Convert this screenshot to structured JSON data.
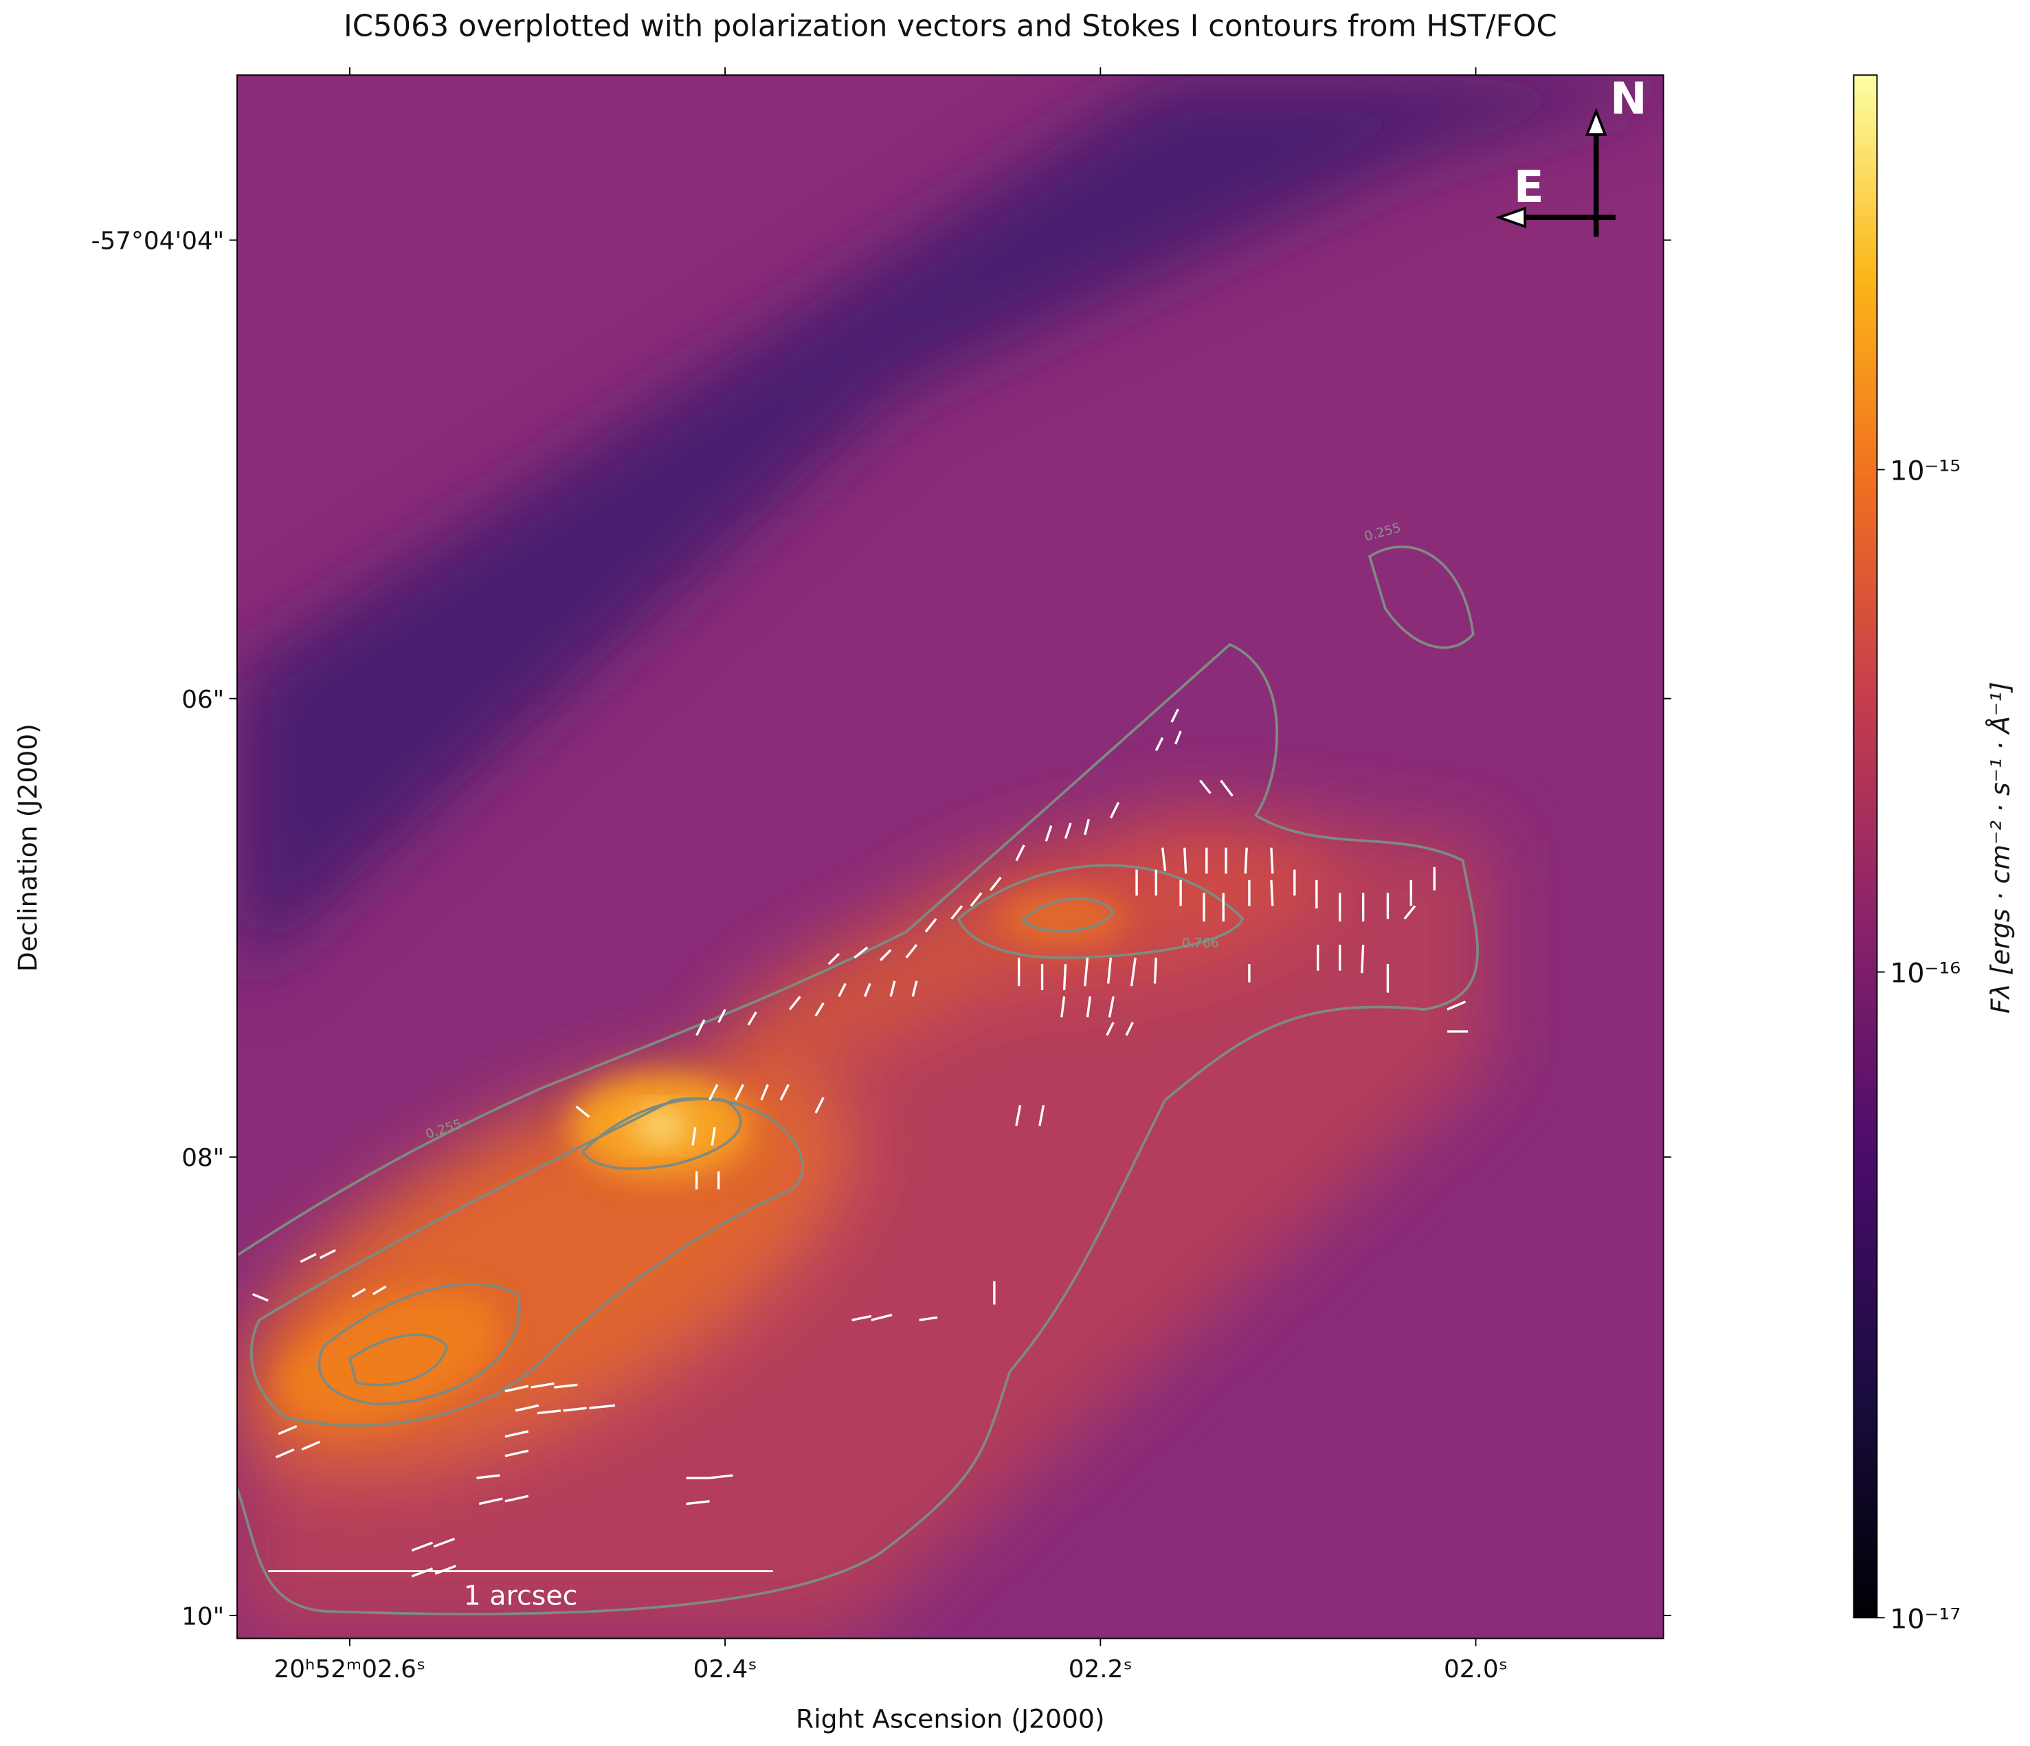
{
  "chart_data": {
    "type": "image",
    "title": "IC5063 overplotted with polarization vectors and Stokes I contours from HST/FOC",
    "xlabel": "Right Ascension (J2000)",
    "ylabel": "Declination (J2000)",
    "xlim": [
      2.66,
      1.9
    ],
    "xticks": [
      {
        "value": 2.6,
        "label": "20ʰ52ᵐ02.6ˢ"
      },
      {
        "value": 2.4,
        "label": "02.4ˢ"
      },
      {
        "value": 2.2,
        "label": "02.2ˢ"
      },
      {
        "value": 2.0,
        "label": "02.0ˢ"
      }
    ],
    "ylim": [
      10.1,
      3.28
    ],
    "yticks": [
      {
        "value": 4,
        "label": "-57°04'04\""
      },
      {
        "value": 6,
        "label": "06\""
      },
      {
        "value": 8,
        "label": "08\""
      },
      {
        "value": 10,
        "label": "10\""
      }
    ],
    "compass": {
      "north": "N",
      "east": "E"
    },
    "scale_bar": "1 arcsec",
    "contour_labels": [
      "0.255",
      "0.255",
      "0.766"
    ],
    "colorbar": {
      "label": "Fλ [ergs · cm⁻² · s⁻¹ · Å⁻¹]",
      "scale": "power",
      "gamma": 0.24,
      "clim": [
        1e-17,
        3.4e-15
      ],
      "ticks": [
        {
          "value": 1e-17,
          "label": "10⁻¹⁷"
        },
        {
          "value": 1e-16,
          "label": "10⁻¹⁶"
        },
        {
          "value": 1e-15,
          "label": "10⁻¹⁵"
        }
      ]
    }
  }
}
